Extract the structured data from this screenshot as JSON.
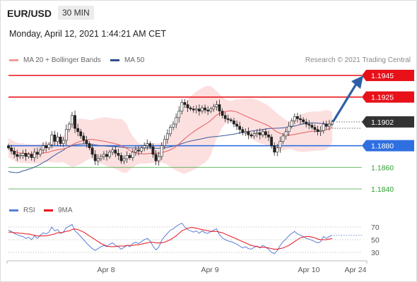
{
  "header": {
    "pair": "EUR/USD",
    "timeframe": "30 MIN",
    "datetime": "Monday, April 12, 2021 1:44:21 AM CET"
  },
  "legend": {
    "ma20_label": "MA 20 + Bollinger Bands",
    "ma50_label": "MA 50",
    "credit": "Research © 2021 Trading Central",
    "rsi_label": "RSI",
    "rsi_ma_label": "9MA"
  },
  "colors": {
    "resistance": "#e8111a",
    "support": "#2f6fe0",
    "target": "#2f9e2f",
    "ma20": "#e35c5c",
    "bollinger_fill": "#fbd5d5",
    "ma50": "#3a5a9a",
    "arrow": "#2d5fa8",
    "up_candle": "#ffffff",
    "down_candle": "#222222",
    "rsi": "#5a7fd6",
    "rsi_ma": "#e8111a",
    "current_price_bg": "#333333"
  },
  "chart_data": [
    {
      "type": "candlestick",
      "title": "EUR/USD",
      "ylim": [
        1.1825,
        1.1955
      ],
      "x_ticks": [
        "Apr 8",
        "Apr 9",
        "Apr 10",
        "Apr 24"
      ],
      "current_price": "1.1902",
      "levels": [
        {
          "label": "1.1945",
          "value": 1.1945,
          "kind": "resistance"
        },
        {
          "label": "1.1925",
          "value": 1.1925,
          "kind": "resistance"
        },
        {
          "label": "1.1880",
          "value": 1.188,
          "kind": "support"
        },
        {
          "label": "1.1860",
          "value": 1.186,
          "kind": "target"
        },
        {
          "label": "1.1840",
          "value": 1.184,
          "kind": "target"
        }
      ],
      "close": [
        1.1878,
        1.1875,
        1.1872,
        1.187,
        1.1871,
        1.1873,
        1.187,
        1.1872,
        1.1869,
        1.1874,
        1.1872,
        1.1876,
        1.188,
        1.1878,
        1.1881,
        1.189,
        1.1884,
        1.1888,
        1.1882,
        1.1885,
        1.1895,
        1.19,
        1.1908,
        1.1896,
        1.1893,
        1.1889,
        1.1885,
        1.1882,
        1.1878,
        1.1872,
        1.1866,
        1.1868,
        1.187,
        1.1872,
        1.187,
        1.1874,
        1.1876,
        1.1873,
        1.1871,
        1.1866,
        1.1868,
        1.1871,
        1.1869,
        1.1874,
        1.1876,
        1.1875,
        1.1878,
        1.188,
        1.1882,
        1.1879,
        1.1872,
        1.1866,
        1.187,
        1.188,
        1.1886,
        1.1891,
        1.1897,
        1.19,
        1.1906,
        1.1912,
        1.192,
        1.1918,
        1.1915,
        1.1914,
        1.1913,
        1.1914,
        1.1912,
        1.1915,
        1.1913,
        1.1912,
        1.1914,
        1.1916,
        1.1918,
        1.1912,
        1.1908,
        1.1905,
        1.1904,
        1.1903,
        1.19,
        1.1898,
        1.1895,
        1.1892,
        1.1893,
        1.189,
        1.1889,
        1.1891,
        1.1892,
        1.189,
        1.1893,
        1.189,
        1.1888,
        1.188,
        1.1874,
        1.1878,
        1.1884,
        1.1889,
        1.1893,
        1.1898,
        1.1903,
        1.1907,
        1.1905,
        1.1904,
        1.1902,
        1.19,
        1.1899,
        1.1897,
        1.1895,
        1.1893,
        1.1894,
        1.19,
        1.1898,
        1.19,
        1.1902
      ]
    },
    {
      "type": "line",
      "title": "RSI",
      "ylim": [
        20,
        80
      ],
      "y_ticks": [
        70,
        50,
        30
      ],
      "series": [
        {
          "name": "RSI",
          "values": [
            65,
            63,
            60,
            58,
            56,
            55,
            52,
            54,
            50,
            56,
            52,
            57,
            61,
            59,
            62,
            70,
            64,
            66,
            60,
            62,
            69,
            71,
            74,
            64,
            60,
            55,
            50,
            45,
            40,
            36,
            33,
            36,
            39,
            41,
            39,
            43,
            45,
            41,
            39,
            35,
            38,
            41,
            39,
            44,
            46,
            44,
            47,
            50,
            52,
            48,
            40,
            34,
            38,
            49,
            55,
            60,
            65,
            67,
            71,
            74,
            76,
            70,
            66,
            64,
            62,
            64,
            60,
            64,
            61,
            60,
            63,
            65,
            67,
            58,
            53,
            50,
            48,
            47,
            45,
            43,
            40,
            37,
            39,
            36,
            35,
            38,
            40,
            37,
            41,
            38,
            35,
            30,
            28,
            33,
            41,
            47,
            51,
            56,
            60,
            63,
            59,
            57,
            55,
            52,
            51,
            49,
            47,
            45,
            47,
            55,
            52,
            55,
            57
          ]
        },
        {
          "name": "9MA",
          "values": [
            62,
            62,
            61,
            61,
            60,
            60,
            59,
            59,
            58,
            57,
            56,
            56,
            56,
            56,
            57,
            58,
            59,
            61,
            61,
            62,
            63,
            64,
            66,
            67,
            66,
            64,
            62,
            59,
            56,
            53,
            50,
            47,
            44,
            42,
            40,
            39,
            39,
            39,
            40,
            40,
            40,
            41,
            41,
            41,
            42,
            42,
            43,
            44,
            45,
            46,
            46,
            45,
            45,
            45,
            46,
            48,
            50,
            53,
            56,
            60,
            64,
            66,
            68,
            69,
            69,
            68,
            67,
            66,
            65,
            64,
            63,
            63,
            63,
            62,
            61,
            59,
            57,
            55,
            53,
            51,
            49,
            47,
            45,
            43,
            41,
            40,
            39,
            38,
            38,
            38,
            37,
            36,
            35,
            35,
            36,
            37,
            39,
            41,
            44,
            47,
            50,
            53,
            54,
            55,
            55,
            54,
            53,
            51,
            50,
            50,
            50,
            51,
            52
          ]
        }
      ]
    }
  ]
}
